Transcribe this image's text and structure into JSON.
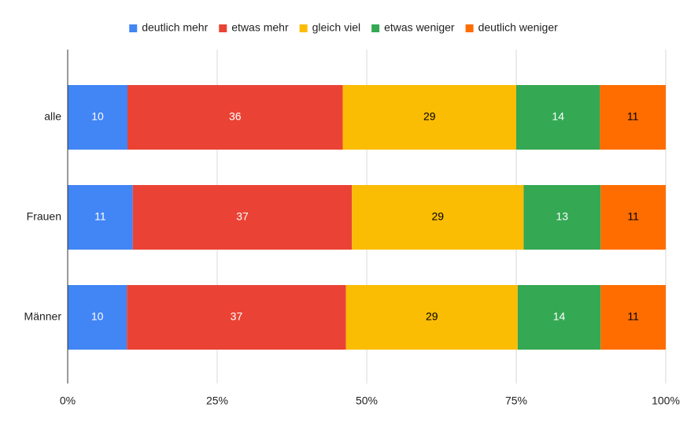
{
  "chart_data": {
    "type": "bar",
    "orientation": "horizontal",
    "stacked": "percent",
    "categories": [
      "alle",
      "Frauen",
      "Männer"
    ],
    "series": [
      {
        "name": "deutlich mehr",
        "color": "#4285f4",
        "label_color": "#ffffff",
        "values": [
          10,
          11,
          10
        ]
      },
      {
        "name": "etwas mehr",
        "color": "#ea4335",
        "label_color": "#ffffff",
        "values": [
          36,
          37,
          37
        ]
      },
      {
        "name": "gleich viel",
        "color": "#fbbc04",
        "label_color": "#000000",
        "values": [
          29,
          29,
          29
        ]
      },
      {
        "name": "etwas weniger",
        "color": "#34a853",
        "label_color": "#ffffff",
        "values": [
          14,
          13,
          14
        ]
      },
      {
        "name": "deutlich weniger",
        "color": "#ff6d01",
        "label_color": "#000000",
        "values": [
          11,
          11,
          11
        ]
      }
    ],
    "xlim": [
      0,
      100
    ],
    "xticks": [
      "0%",
      "25%",
      "50%",
      "75%",
      "100%"
    ],
    "title": "",
    "xlabel": "",
    "ylabel": "",
    "grid": "vertical",
    "legend_position": "top-center"
  }
}
